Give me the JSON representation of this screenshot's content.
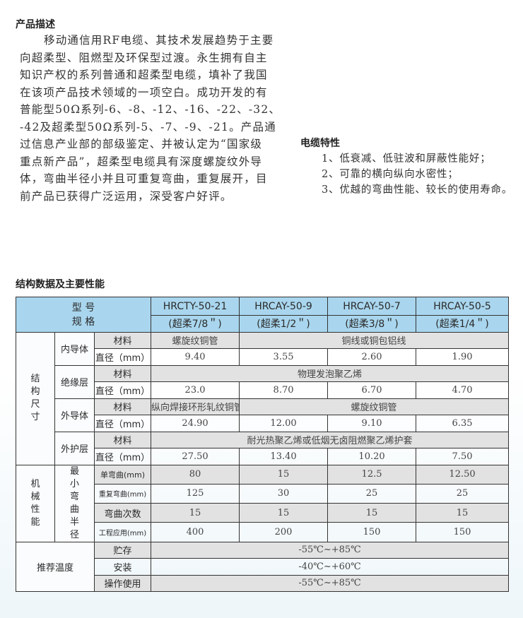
{
  "description": {
    "title": "产品描述",
    "lines": [
      "移动通信用RF电缆、其技术发展趋势于主要",
      "向超柔型、阻燃型及环保型过渡。永生拥有自主",
      "知识产权的系列普通和超柔型电缆，填补了我国",
      "在该项产品技术领域的一项空白。成功开发的有",
      "普能型50Ω系列-6、-8、-12、-16、-22、-32、",
      "-42及超柔型50Ω系列-5、-7、-9、-21。产品通",
      "过信息产业部的部级鉴定、并被认定为“国家级",
      "重点新产品”，超柔型电缆具有深度螺旋纹外导",
      "体，弯曲半径小并且可重复弯曲，重复展开，目",
      "前产品已获得广泛运用，深受客户好评。"
    ]
  },
  "features": {
    "title": "电缆特性",
    "items": [
      "1、低衰减、低驻波和屏蔽性能好；",
      "2、可靠的横向纵向水密性；",
      "3、优越的弯曲性能、较长的使用寿命。"
    ]
  },
  "table": {
    "title": "结构数据及主要性能",
    "header_model": "型 号",
    "header_spec": "规 格",
    "models": [
      "HRCTY-50-21",
      "HRCAY-50-9",
      "HRCAY-50-7",
      "HRCAY-50-5"
    ],
    "specs": [
      "(超柔7/8＂)",
      "(超柔1/2＂)",
      "(超柔3/8＂)",
      "(超柔1/4＂)"
    ],
    "structure": "结构尺寸",
    "material": "材料",
    "diameter": "直径（mm）",
    "inner": {
      "label": "内导体",
      "mat1": "螺旋纹铜管",
      "mat_rest": "铜线或铜包铝线",
      "dia": [
        "9.40",
        "3.55",
        "2.60",
        "1.90"
      ]
    },
    "insulation": {
      "label": "绝缘层",
      "mat": "物理发泡聚乙烯",
      "dia": [
        "23.0",
        "8.70",
        "6.70",
        "4.70"
      ]
    },
    "outer": {
      "label": "外导体",
      "mat1": "纵向焊接环形轧纹铜管",
      "mat_rest": "螺旋纹铜管",
      "dia": [
        "24.90",
        "12.00",
        "9.10",
        "6.35"
      ]
    },
    "jacket": {
      "label": "外护层",
      "mat": "耐光热聚乙烯或低烟无卤阻燃聚乙烯护套",
      "dia": [
        "27.50",
        "13.40",
        "10.20",
        "7.50"
      ]
    },
    "mechanical": "机械性能",
    "bend_radius": "最小弯曲半径",
    "single": {
      "label": "单弯曲(mm)",
      "values": [
        "80",
        "15",
        "12.5",
        "12.50"
      ]
    },
    "repeat": {
      "label": "重复弯曲(mm)",
      "values": [
        "125",
        "30",
        "25",
        "25"
      ]
    },
    "count": {
      "label": "弯曲次数",
      "values": [
        "15",
        "15",
        "15",
        "15"
      ]
    },
    "eng": {
      "label": "工程应用(mm)",
      "values": [
        "400",
        "200",
        "150",
        "150"
      ]
    },
    "temp": "推荐温度",
    "storage": {
      "label": "贮存",
      "value": "-55℃~+85℃"
    },
    "install": {
      "label": "安装",
      "value": "-40℃~+60℃"
    },
    "operate": {
      "label": "操作使用",
      "value": "-55℃~+85℃"
    },
    "colors": {
      "header": "#a9d6ee",
      "gray_row": "#e2e2e2"
    }
  }
}
